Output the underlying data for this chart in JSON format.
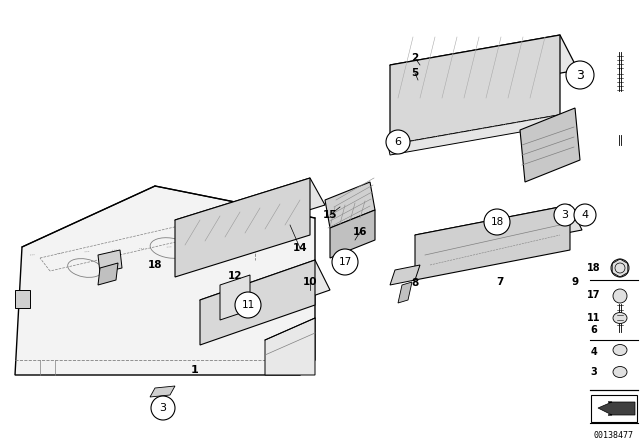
{
  "bg_color": "#ffffff",
  "fig_width": 6.4,
  "fig_height": 4.48,
  "dpi": 100,
  "watermark": "00138477"
}
